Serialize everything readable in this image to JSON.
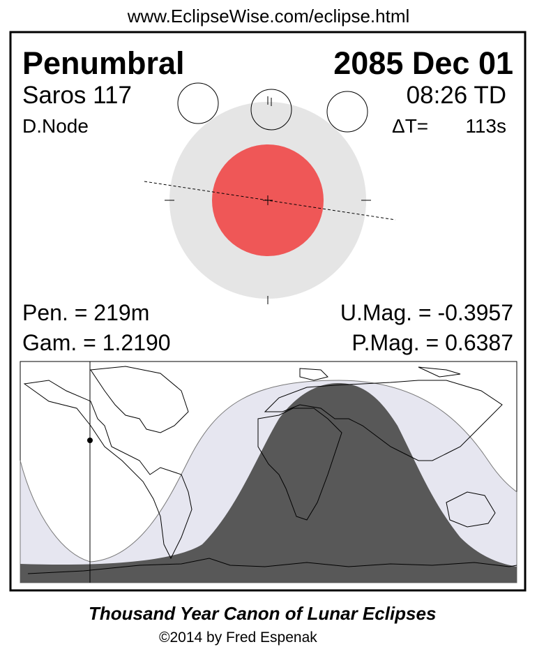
{
  "header_url": "www.EclipseWise.com/eclipse.html",
  "eclipse": {
    "type": "Penumbral",
    "date": "2085 Dec 01",
    "saros": "Saros 117",
    "time": "08:26 TD",
    "node": "D.Node",
    "delta_t_label": "ΔT=",
    "delta_t_value": "113s",
    "pen_duration": "Pen. = 219m",
    "gamma": "Gam. = 1.2190",
    "umbral_mag": "U.Mag. = -0.3957",
    "penumbral_mag": "P.Mag. = 0.6387"
  },
  "colors": {
    "penumbra": "#e5e5e5",
    "umbra": "#ef5757",
    "map_penumbral_zone": "#e6e6f0",
    "map_visible_zone": "#585858"
  },
  "footer": {
    "title": "Thousand Year Canon of Lunar Eclipses",
    "copyright": "©2014 by Fred Espenak"
  }
}
